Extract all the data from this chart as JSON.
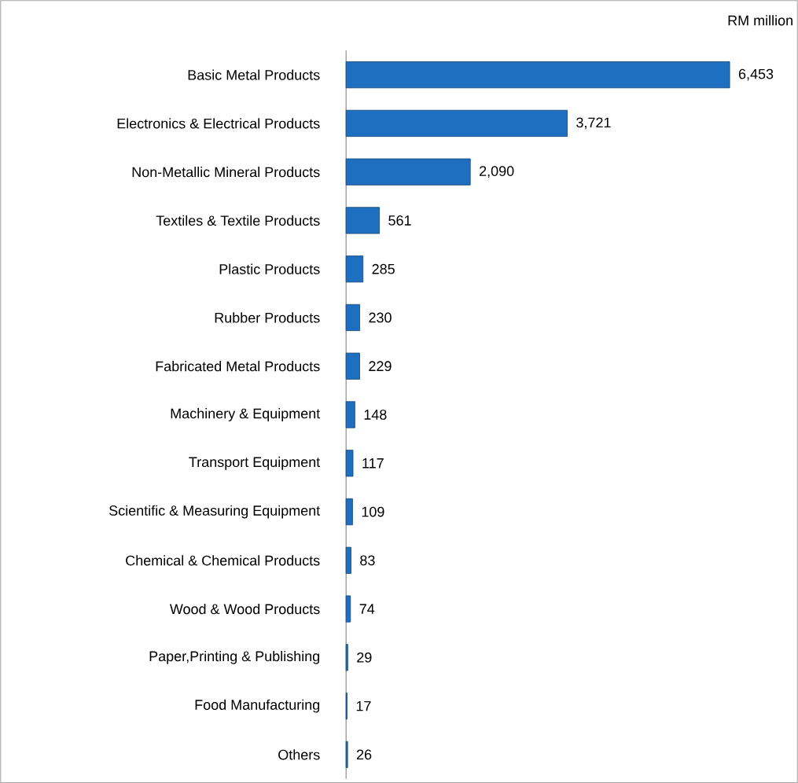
{
  "chart_data": {
    "type": "bar",
    "orientation": "horizontal",
    "categories": [
      "Basic Metal Products",
      "Electronics & Electrical Products",
      "Non-Metallic Mineral Products",
      "Textiles & Textile Products",
      "Plastic Products",
      "Rubber Products",
      "Fabricated Metal Products",
      "Machinery & Equipment",
      "Transport Equipment",
      "Scientific & Measuring Equipment",
      "Chemical & Chemical Products",
      "Wood & Wood Products",
      "Paper,Printing & Publishing",
      "Food Manufacturing",
      "Others"
    ],
    "values": [
      6453,
      3721,
      2090,
      561,
      285,
      230,
      229,
      148,
      117,
      109,
      83,
      74,
      29,
      17,
      26
    ],
    "value_labels": [
      "6,453",
      "3,721",
      "2,090",
      "561",
      "285",
      "230",
      "229",
      "148",
      "117",
      "109",
      "83",
      "74",
      "29",
      "17",
      "26"
    ],
    "color": "#1f6fc0",
    "annotations": [
      "RM million"
    ]
  }
}
